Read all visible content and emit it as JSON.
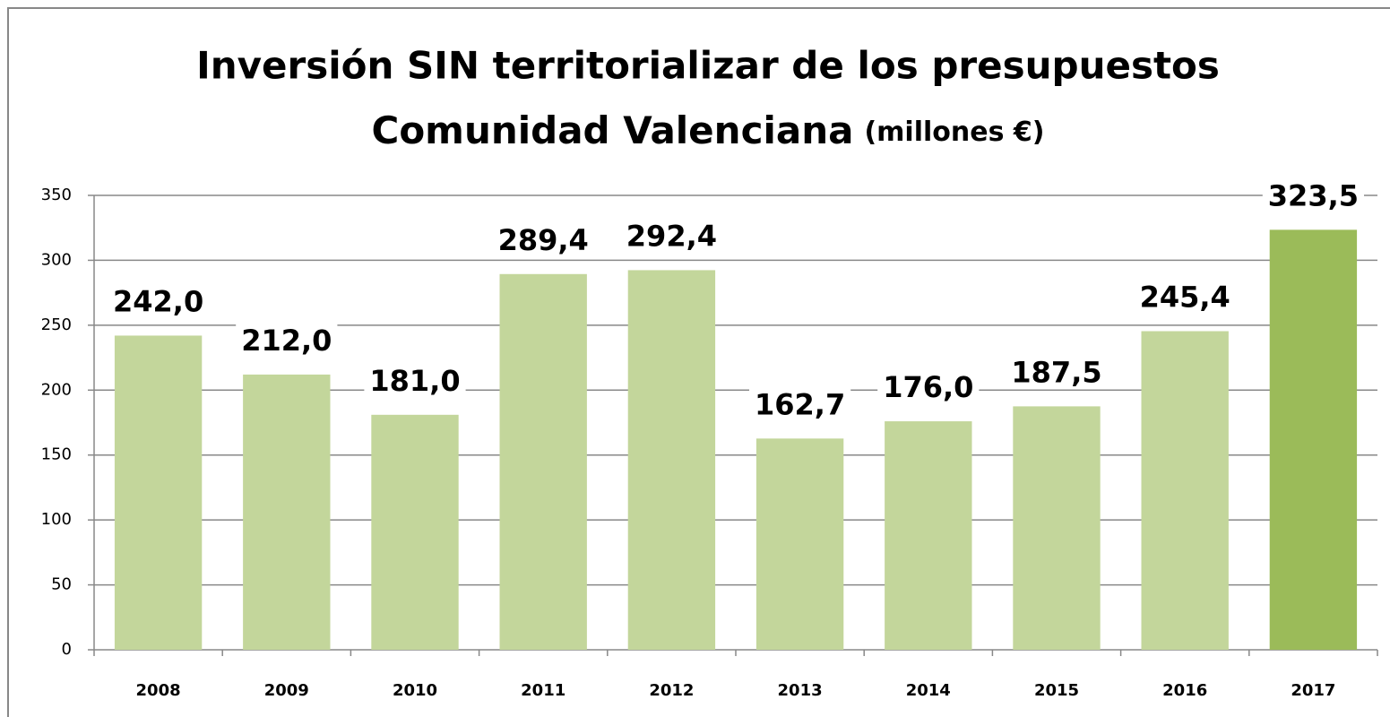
{
  "chart_data": {
    "type": "bar",
    "title": "Inversión SIN territorializar de los presupuestos",
    "subtitle": "Comunidad Valenciana",
    "unit_label": "(millones €)",
    "categories": [
      "2008",
      "2009",
      "2010",
      "2011",
      "2012",
      "2013",
      "2014",
      "2015",
      "2016",
      "2017"
    ],
    "values": [
      242.0,
      212.0,
      181.0,
      289.4,
      292.4,
      162.7,
      176.0,
      187.5,
      245.4,
      323.5
    ],
    "value_labels": [
      "242,0",
      "212,0",
      "181,0",
      "289,4",
      "292,4",
      "162,7",
      "176,0",
      "187,5",
      "245,4",
      "323,5"
    ],
    "colors": [
      "#c3d69b",
      "#c3d69b",
      "#c3d69b",
      "#c3d69b",
      "#c3d69b",
      "#c3d69b",
      "#c3d69b",
      "#c3d69b",
      "#c3d69b",
      "#9bbb59"
    ],
    "ylim": [
      0,
      350
    ],
    "yticks": [
      0,
      50,
      100,
      150,
      200,
      250,
      300,
      350
    ],
    "grid": true
  }
}
